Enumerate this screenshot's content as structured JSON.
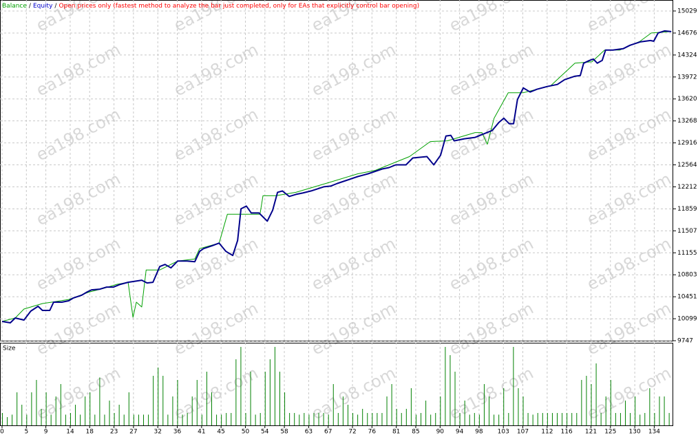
{
  "watermark": "ea198.com",
  "chart_data": [
    {
      "type": "line",
      "legend_separator": "/",
      "mode_note": "Open prices only (fastest method to analyze the bar just completed, only for EAs that explicitly control bar opening)",
      "mode_note_color": "#ff0000",
      "xlim": [
        -0.42,
        137.9
      ],
      "ylim": [
        9747,
        15205
      ],
      "yticks": [
        15029,
        14676,
        14324,
        13972,
        13620,
        13268,
        12916,
        12564,
        12212,
        11859,
        11507,
        11155,
        10803,
        10451,
        10099,
        9747
      ],
      "grid": true,
      "series": [
        {
          "name": "Balance",
          "color": "#00a000",
          "width": 1,
          "x": [
            0,
            2.7,
            4.5,
            8.3,
            10.2,
            13.7,
            18.0,
            20.8,
            23.6,
            25.9,
            26.9,
            27.6,
            28.7,
            29.6,
            32.4,
            36.1,
            39.6,
            40.6,
            44.6,
            46.3,
            49.1,
            53.0,
            53.6,
            56.2,
            60.4,
            67.5,
            73.1,
            76.7,
            80.2,
            83.7,
            88.0,
            91.5,
            97.2,
            98.6,
            99.7,
            101.1,
            104.0,
            107.1,
            112.7,
            117.7,
            121.2,
            123.8,
            126.9,
            131.1,
            133.4,
            137.5
          ],
          "values": [
            10056,
            10111,
            10254,
            10342,
            10364,
            10408,
            10529,
            10584,
            10650,
            10683,
            10122,
            10364,
            10287,
            10881,
            10881,
            11024,
            11057,
            11222,
            11310,
            11772,
            11772,
            11772,
            12069,
            12069,
            12124,
            12289,
            12421,
            12476,
            12586,
            12696,
            12938,
            12949,
            13081,
            13081,
            12894,
            13312,
            13720,
            13720,
            13830,
            14193,
            14215,
            14402,
            14402,
            14545,
            14677,
            14699
          ]
        },
        {
          "name": "Equity",
          "color": "#00008b",
          "width": 2,
          "x": [
            0,
            1.7,
            2.7,
            4.5,
            5.9,
            7.4,
            8.3,
            9.8,
            10.6,
            12.3,
            13.7,
            14.6,
            16.3,
            17.5,
            18.4,
            20.1,
            21.5,
            22.9,
            24.3,
            25.9,
            28.7,
            29.8,
            31.0,
            32.4,
            33.5,
            34.7,
            36.1,
            38.0,
            39.6,
            40.6,
            41.4,
            43.1,
            44.6,
            46.0,
            47.4,
            48.4,
            49.1,
            50.2,
            51.2,
            52.8,
            54.5,
            55.6,
            56.6,
            57.6,
            59.0,
            60.4,
            61.8,
            63.5,
            66.1,
            67.5,
            68.9,
            71.0,
            73.1,
            75.2,
            78.1,
            79.5,
            80.9,
            83.0,
            84.4,
            87.3,
            88.7,
            90.1,
            91.2,
            92.2,
            92.9,
            95.0,
            97.2,
            98.6,
            100.7,
            102.1,
            103.1,
            104.2,
            105.1,
            105.9,
            107.1,
            108.5,
            109.9,
            112.0,
            114.1,
            115.6,
            117.7,
            118.8,
            119.5,
            120.7,
            121.5,
            122.3,
            123.3,
            124.0,
            125.5,
            127.6,
            129.0,
            131.1,
            133.2,
            133.9,
            134.8,
            136.1,
            137.5
          ],
          "values": [
            10056,
            10034,
            10111,
            10078,
            10221,
            10298,
            10232,
            10232,
            10364,
            10364,
            10386,
            10430,
            10474,
            10529,
            10562,
            10573,
            10606,
            10606,
            10650,
            10683,
            10716,
            10672,
            10683,
            10936,
            10969,
            10914,
            11024,
            11024,
            11013,
            11178,
            11222,
            11266,
            11310,
            11178,
            11112,
            11354,
            11860,
            11904,
            11794,
            11794,
            11662,
            11838,
            12124,
            12146,
            12058,
            12091,
            12113,
            12146,
            12212,
            12223,
            12267,
            12322,
            12377,
            12421,
            12498,
            12520,
            12564,
            12564,
            12674,
            12696,
            12564,
            12718,
            13026,
            13037,
            12949,
            12982,
            13004,
            13048,
            13114,
            13246,
            13312,
            13224,
            13224,
            13610,
            13797,
            13731,
            13775,
            13819,
            13852,
            13929,
            13984,
            13995,
            14193,
            14237,
            14259,
            14193,
            14237,
            14402,
            14402,
            14424,
            14479,
            14534,
            14556,
            14545,
            14677,
            14710,
            14699
          ]
        }
      ]
    },
    {
      "type": "bar",
      "title": "Size",
      "color": "#008000",
      "xlim": [
        -0.42,
        137.9
      ],
      "ylim": [
        0,
        10
      ],
      "grid": true,
      "xticks": [
        0,
        5,
        9,
        14,
        18,
        23,
        27,
        32,
        36,
        41,
        45,
        50,
        54,
        58,
        63,
        67,
        72,
        76,
        81,
        85,
        90,
        94,
        98,
        103,
        107,
        112,
        116,
        121,
        125,
        130,
        134
      ],
      "values": [
        1.5,
        1,
        1.3,
        4,
        2.5,
        1.3,
        4,
        5.5,
        2,
        4,
        1.3,
        3.5,
        5,
        1.3,
        1.5,
        2.5,
        1.3,
        3.5,
        4,
        1.3,
        5.8,
        1.3,
        3,
        1.5,
        2.5,
        1.3,
        4,
        1.3,
        1.3,
        1.3,
        1.3,
        6,
        7,
        6,
        1.3,
        3.5,
        5.5,
        1.3,
        1.5,
        3.5,
        5.5,
        1.3,
        6.5,
        4,
        1.3,
        1.3,
        1.5,
        1.5,
        8,
        9.5,
        1.5,
        6.5,
        1.3,
        1.5,
        6.5,
        8,
        9.5,
        6.5,
        4,
        1.5,
        1.5,
        1.3,
        1.5,
        1.3,
        1.5,
        1.5,
        1.5,
        1.3,
        5,
        1.5,
        3.5,
        2.5,
        1.5,
        1.3,
        2,
        1.5,
        1.5,
        1.5,
        1.5,
        3.5,
        5,
        2,
        1.5,
        2,
        4.5,
        1.3,
        1.5,
        3,
        1.3,
        1.5,
        3.5,
        9.5,
        8.5,
        6.5,
        1.5,
        3,
        1.3,
        1.5,
        1.3,
        5,
        3.5,
        1.3,
        1.3,
        4.5,
        1.5,
        9.5,
        4.5,
        3.5,
        1.5,
        1.3,
        1.5,
        1.5,
        1.5,
        1.5,
        1.5,
        1.5,
        1.5,
        1.5,
        1.5,
        5.5,
        6,
        5,
        7.5,
        1.5,
        3.5,
        5.5,
        1.5,
        1.5,
        3,
        1.5,
        3.5,
        1.3,
        1.5,
        4.5,
        1.5,
        3.5,
        3.5,
        1.5
      ]
    }
  ]
}
